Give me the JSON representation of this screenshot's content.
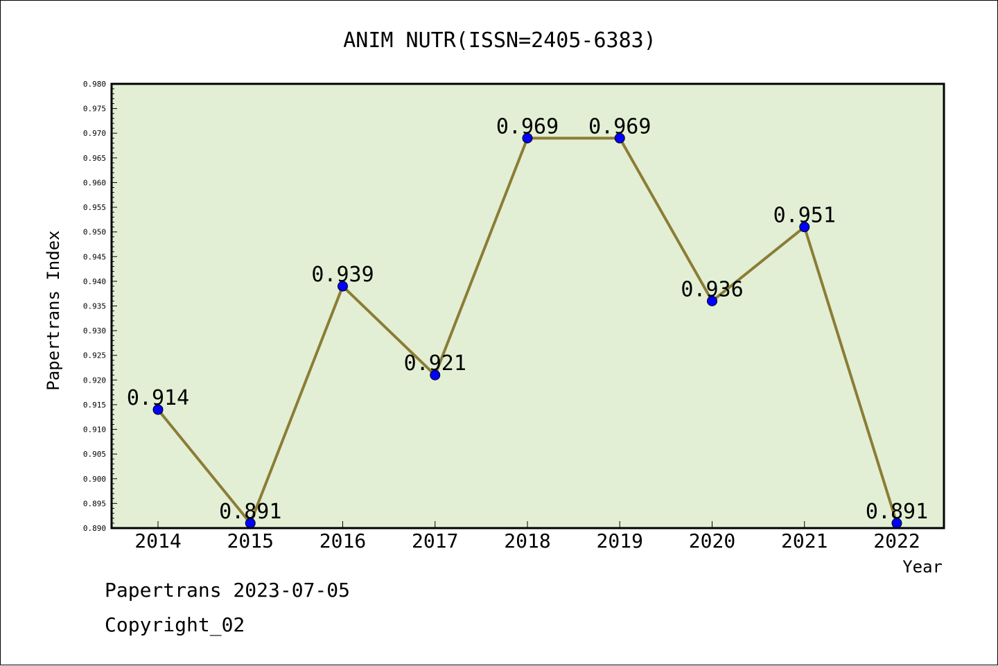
{
  "chart_data": {
    "type": "line",
    "title": "ANIM NUTR(ISSN=2405-6383)",
    "xlabel": "Year",
    "ylabel": "Papertrans Index",
    "x": [
      "2014",
      "2015",
      "2016",
      "2017",
      "2018",
      "2019",
      "2020",
      "2021",
      "2022"
    ],
    "series": [
      {
        "values": [
          0.914,
          0.891,
          0.939,
          0.921,
          0.969,
          0.969,
          0.936,
          0.951,
          0.891
        ]
      }
    ],
    "data_labels": [
      "0.914",
      "0.891",
      "0.939",
      "0.921",
      "0.969",
      "0.969",
      "0.936",
      "0.951",
      "0.891"
    ],
    "ylim": [
      0.89,
      0.98
    ],
    "yticks": [
      "0.890",
      "0.895",
      "0.900",
      "0.905",
      "0.910",
      "0.915",
      "0.920",
      "0.925",
      "0.930",
      "0.935",
      "0.940",
      "0.945",
      "0.950",
      "0.955",
      "0.960",
      "0.965",
      "0.970",
      "0.975",
      "0.980"
    ],
    "grid": false,
    "legend": "none",
    "colors": {
      "plot_background": "#e2efd5",
      "line": "#8b7d35",
      "marker": "#0000ff",
      "axis": "#000000"
    }
  },
  "footer": {
    "stamp": "Papertrans 2023-07-05",
    "copyright": "Copyright_02"
  }
}
